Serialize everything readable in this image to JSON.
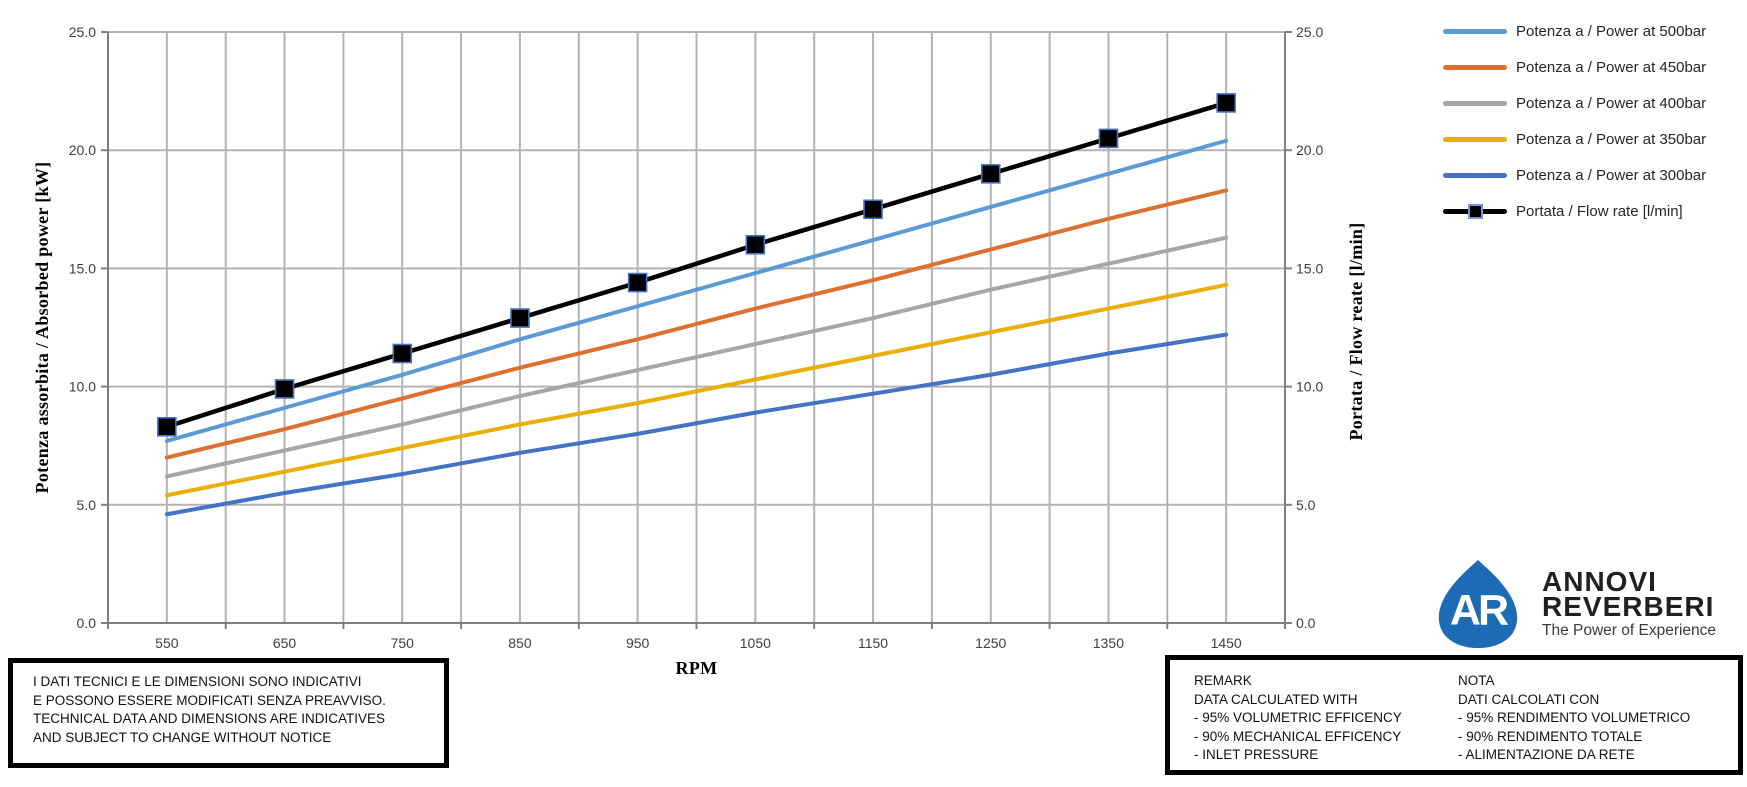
{
  "chart_data": {
    "type": "line",
    "title": "",
    "xlabel": "RPM",
    "ylabel_left": "Potenza assorbita / Absorbed power [kW]",
    "ylabel_right": "Portata / Flow reate [l/min]",
    "xlim": [
      500,
      1500
    ],
    "ylim": [
      0,
      25
    ],
    "x": [
      550,
      650,
      750,
      850,
      950,
      1050,
      1150,
      1250,
      1350,
      1450
    ],
    "x_tick_labels": [
      "550",
      "650",
      "750",
      "850",
      "950",
      "1050",
      "1150",
      "1250",
      "1350",
      "1450"
    ],
    "y_tick_values": [
      0,
      5,
      10,
      15,
      20,
      25
    ],
    "y_tick_labels": [
      "0.0",
      "5.0",
      "10.0",
      "15.0",
      "20.0",
      "25.0"
    ],
    "grid": {
      "show": true,
      "vertical_minor_step_rpm": 50,
      "horizontal_step_kw": 5
    },
    "legend_position": "top-right",
    "series": [
      {
        "name": "Potenza a / Power at 500bar",
        "color": "#5B9BD5",
        "marker": "none",
        "values": [
          7.7,
          9.1,
          10.5,
          12.0,
          13.4,
          14.8,
          16.2,
          17.6,
          19.0,
          20.4
        ]
      },
      {
        "name": "Potenza a / Power at 450bar",
        "color": "#DD7031",
        "marker": "none",
        "values": [
          7.0,
          8.2,
          9.5,
          10.8,
          12.0,
          13.3,
          14.5,
          15.8,
          17.1,
          18.3
        ]
      },
      {
        "name": "Potenza a / Power at 400bar",
        "color": "#A6A6A6",
        "marker": "none",
        "values": [
          6.2,
          7.3,
          8.4,
          9.6,
          10.7,
          11.8,
          12.9,
          14.1,
          15.2,
          16.3
        ]
      },
      {
        "name": "Potenza a / Power at 350bar",
        "color": "#E8B007",
        "marker": "none",
        "values": [
          5.4,
          6.4,
          7.4,
          8.4,
          9.3,
          10.3,
          11.3,
          12.3,
          13.3,
          14.3
        ]
      },
      {
        "name": "Potenza a / Power at 300bar",
        "color": "#4472C4",
        "marker": "none",
        "values": [
          4.6,
          5.5,
          6.3,
          7.2,
          8.0,
          8.9,
          9.7,
          10.5,
          11.4,
          12.2
        ]
      },
      {
        "name": "Portata / Flow rate [l/min]",
        "color": "#000000",
        "marker": "square",
        "marker_fill": "#000000",
        "marker_border": "#4472C4",
        "values": [
          8.3,
          9.9,
          11.4,
          12.9,
          14.4,
          16.0,
          17.5,
          19.0,
          20.5,
          22.0
        ]
      }
    ]
  },
  "disclaimer_box": {
    "lines": [
      "I DATI TECNICI E LE DIMENSIONI SONO INDICATIVI",
      "E POSSONO ESSERE MODIFICATI SENZA PREAVVISO.",
      "TECHNICAL DATA AND DIMENSIONS ARE INDICATIVES",
      "AND SUBJECT TO CHANGE WITHOUT NOTICE"
    ]
  },
  "remark_box": {
    "remark_lines": [
      "REMARK",
      "DATA CALCULATED WITH",
      "- 95% VOLUMETRIC EFFICENCY",
      "- 90% MECHANICAL EFFICENCY",
      "- INLET PRESSURE"
    ],
    "nota_lines": [
      "NOTA",
      "DATI CALCOLATI CON",
      "- 95% RENDIMENTO VOLUMETRICO",
      "- 90% RENDIMENTO TOTALE",
      "- ALIMENTAZIONE DA RETE"
    ]
  },
  "logo": {
    "monogram": "AR",
    "name_line1": "ANNOVI",
    "name_line2": "REVERBERI",
    "tagline": "The Power of Experience",
    "emblem_color": "#1C6BB4"
  },
  "style_colors": {
    "gridline": "#B3B3B3",
    "axis": "#7F7F7F",
    "tick_label": "#3F3F3F",
    "legend_text": "#262626"
  }
}
